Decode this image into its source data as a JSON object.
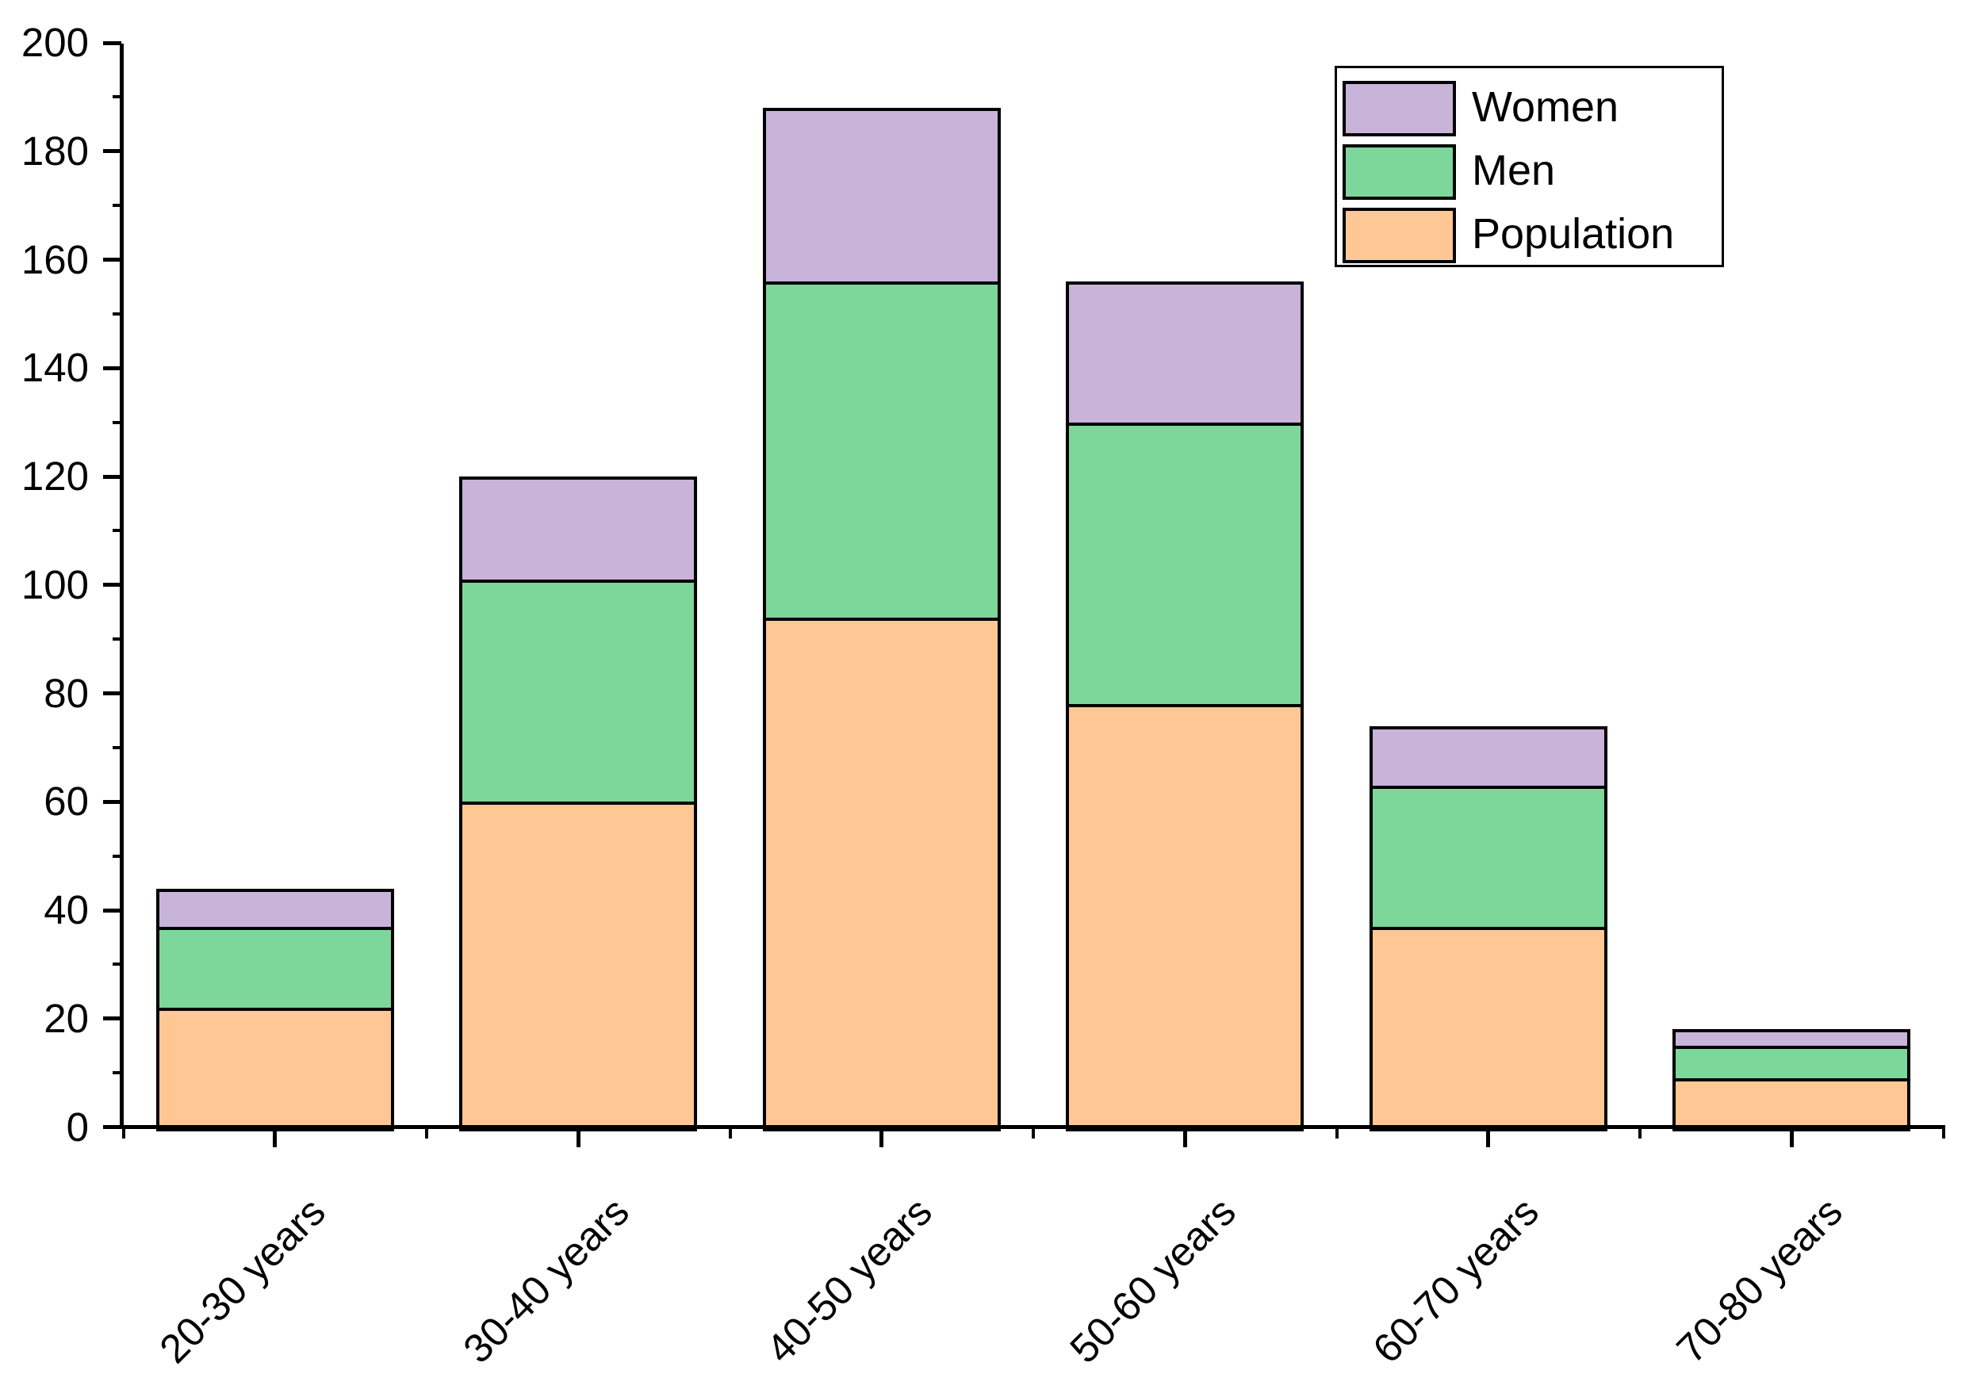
{
  "chart_data": {
    "type": "bar",
    "stacked": true,
    "title": "",
    "xlabel": "",
    "ylabel": "",
    "categories": [
      "20-30 years",
      "30-40 years",
      "40-50 years",
      "50-60 years",
      "60-70 years",
      "70-80 years"
    ],
    "series": [
      {
        "name": "Population",
        "color": "#FFC794",
        "values": [
          22,
          60,
          94,
          78,
          37,
          9
        ]
      },
      {
        "name": "Men",
        "color": "#7DD69A",
        "values": [
          15,
          41,
          62,
          52,
          26,
          6
        ]
      },
      {
        "name": "Women",
        "color": "#C8B3D9",
        "values": [
          7,
          19,
          32,
          26,
          11,
          3
        ]
      }
    ],
    "cumulative_tops": {
      "Population": [
        22,
        60,
        94,
        78,
        37,
        9
      ],
      "Men": [
        37,
        101,
        156,
        130,
        63,
        15
      ],
      "Women": [
        44,
        120,
        188,
        156,
        74,
        18
      ]
    },
    "stack_totals": [
      44,
      120,
      188,
      156,
      74,
      18
    ],
    "ylim": [
      0,
      200
    ],
    "yticks": [
      0,
      20,
      40,
      60,
      80,
      100,
      120,
      140,
      160,
      180,
      200
    ],
    "ytick_step": 20,
    "yminor_step": 10,
    "grid": false,
    "bar_border_color": "#000000",
    "axis_color": "#000000",
    "background_color": "#ffffff",
    "legend": {
      "position": "top-right",
      "entries": [
        "Women",
        "Men",
        "Population"
      ]
    }
  }
}
